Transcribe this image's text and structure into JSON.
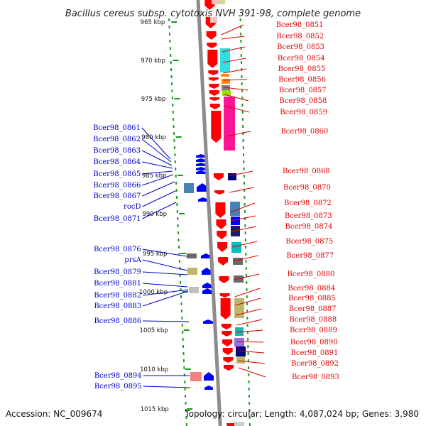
{
  "title": "Bacillus cereus subsp. cytotoxis NVH 391-98, complete genome",
  "accession": "Accession: NC_009674",
  "topology": "Topology: circular; Length: 4,087,024 bp; Genes: 3,980",
  "colors": {
    "forward_label": "#e00000",
    "reverse_label": "#0000cc",
    "backbone": "#8c8c8c",
    "tick": "#1a9a1a"
  },
  "kbp_labels": [
    "965 kbp",
    "970 kbp",
    "975 kbp",
    "980 kbp",
    "985 kbp",
    "990 kbp",
    "995 kbp",
    "1000 kbp",
    "1005 kbp",
    "1010 kbp",
    "1015 kbp"
  ],
  "right_labels": [
    "Bcer98_0851",
    "Bcer98_0852",
    "Bcer98_0853",
    "Bcer98_0854",
    "Bcer98_0855",
    "Bcer98_0856",
    "Bcer98_0857",
    "Bcer98_0858",
    "Bcer98_0859",
    "Bcer98_0860",
    "Bcer98_0868",
    "Bcer98_0870",
    "Bcer98_0872",
    "Bcer98_0873",
    "Bcer98_0874",
    "Bcer98_0875",
    "Bcer98_0877",
    "Bcer98_0880",
    "Bcer98_0884",
    "Bcer98_0885",
    "Bcer98_0887",
    "Bcer98_0888",
    "Bcer98_0889",
    "Bcer98_0890",
    "Bcer98_0891",
    "Bcer98_0892",
    "Bcer98_0893"
  ],
  "left_labels": [
    "Bcer98_0861",
    "Bcer98_0862",
    "Bcer98_0863",
    "Bcer98_0864",
    "Bcer98_0865",
    "Bcer98_0866",
    "Bcer98_0867",
    "rocD",
    "Bcer98_0871",
    "Bcer98_0876",
    "prsA",
    "Bcer98_0879",
    "Bcer98_0881",
    "Bcer98_0882",
    "Bcer98_0883",
    "Bcer98_0886",
    "Bcer98_0894",
    "Bcer98_0895"
  ]
}
